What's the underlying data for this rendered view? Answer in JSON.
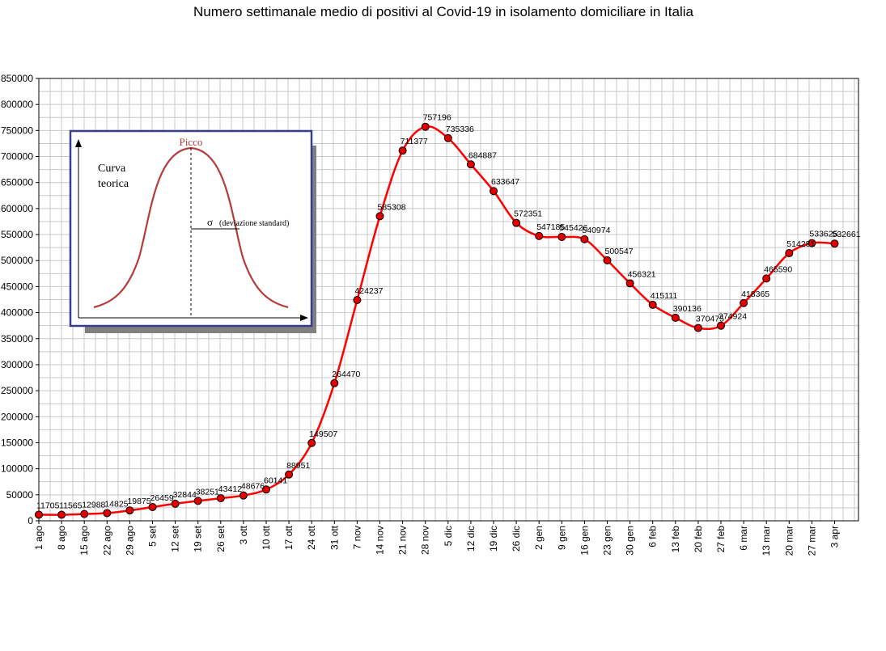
{
  "chart_data": {
    "type": "line",
    "title": "Numero settimanale medio di positivi al Covid-19  in isolamento domiciliare in Italia",
    "xlabel": "",
    "ylabel": "",
    "categories": [
      "1 ago",
      "8 ago",
      "15 ago",
      "22 ago",
      "29 ago",
      "5 set",
      "12 set",
      "19 set",
      "26 set",
      "3 ott",
      "10 ott",
      "17 ott",
      "24 ott",
      "31 ott",
      "7 nov",
      "14 nov",
      "21 nov",
      "28 nov",
      "5 dic",
      "12 dic",
      "19 dic",
      "26 dic",
      "2 gen",
      "9 gen",
      "16 gen",
      "23 gen",
      "30 gen",
      "6 feb",
      "13 feb",
      "20 feb",
      "27 feb",
      "6 mar",
      "13 mar",
      "20 mar",
      "27 mar",
      "3 apr"
    ],
    "series": [
      {
        "values": [
          11705,
          11565,
          12988,
          14825,
          19875,
          26459,
          32844,
          38251,
          43412,
          48676,
          60141,
          88951,
          149507,
          264470,
          424237,
          585308,
          711377,
          757196,
          735336,
          684887,
          633647,
          572351,
          547185,
          545426,
          540974,
          500547,
          456321,
          415111,
          390136,
          370475,
          374924,
          418365,
          465590,
          514281,
          533625,
          532661
        ],
        "labels": [
          "11705",
          "11565",
          "12988",
          "14825",
          "19875",
          "26459",
          "32844",
          "38251",
          "43412",
          "48676",
          "60141",
          "88951",
          "149507",
          "264470",
          "424237",
          "585308",
          "711377",
          "757196",
          "735336",
          "684887",
          "633647",
          "572351",
          "547185",
          "545426",
          "540974",
          "500547",
          "456321",
          "415111",
          "390136",
          "370475",
          "374924",
          "418365",
          "465590",
          "514281",
          "533625",
          "532661"
        ],
        "color": "#ff0000",
        "marker_color": "#e00000"
      }
    ],
    "ylim": [
      0,
      850000
    ],
    "yticks": [
      "0",
      "50000",
      "100000",
      "150000",
      "200000",
      "250000",
      "300000",
      "350000",
      "400000",
      "450000",
      "500000",
      "550000",
      "600000",
      "650000",
      "700000",
      "750000",
      "800000",
      "850000"
    ],
    "grid": true,
    "inset": {
      "peak_label": "Picco",
      "curve_label_line1": "Curva",
      "curve_label_line2": "teorica",
      "sigma_symbol": "σ",
      "sigma_label": "(deviazione standard)"
    }
  }
}
